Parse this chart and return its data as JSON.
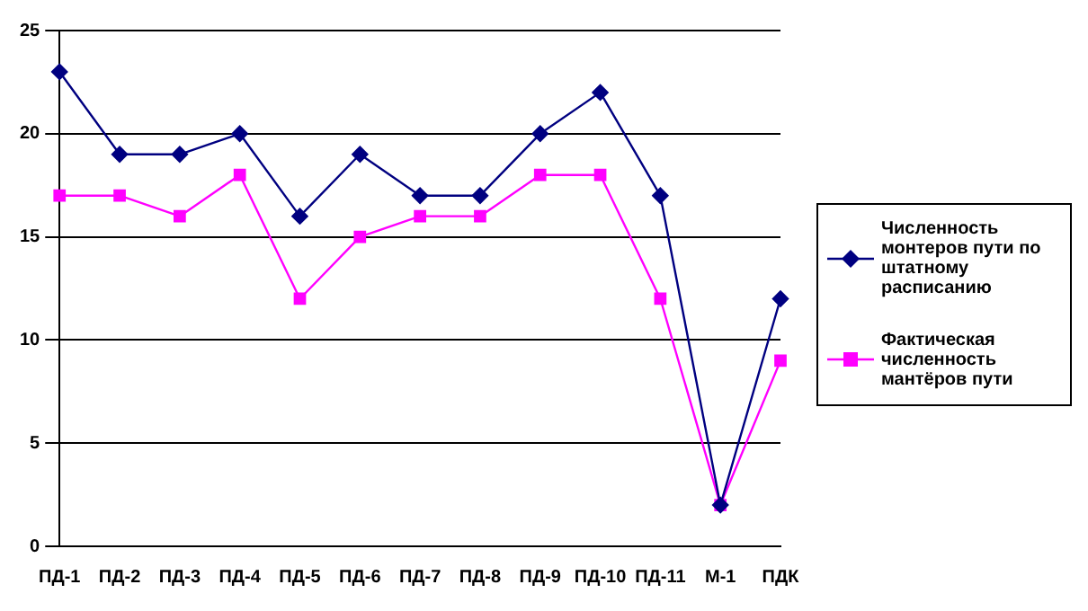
{
  "chart_data": {
    "type": "line",
    "categories": [
      "ПД-1",
      "ПД-2",
      "ПД-3",
      "ПД-4",
      "ПД-5",
      "ПД-6",
      "ПД-7",
      "ПД-8",
      "ПД-9",
      "ПД-10",
      "ПД-11",
      "М-1",
      "ПДК"
    ],
    "series": [
      {
        "name": "Численность монтеров пути по штатному расписанию",
        "color": "#000080",
        "marker": "diamond",
        "values": [
          23,
          19,
          19,
          20,
          16,
          19,
          17,
          17,
          20,
          22,
          17,
          2,
          12
        ]
      },
      {
        "name": "Фактическая численность мантёров пути",
        "color": "#ff00ff",
        "marker": "square",
        "values": [
          17,
          17,
          16,
          18,
          12,
          15,
          16,
          16,
          18,
          18,
          12,
          2,
          9
        ]
      }
    ],
    "ylim": [
      0,
      25
    ],
    "yticks": [
      0,
      5,
      10,
      15,
      20,
      25
    ],
    "grid": "y",
    "legend": "right"
  }
}
